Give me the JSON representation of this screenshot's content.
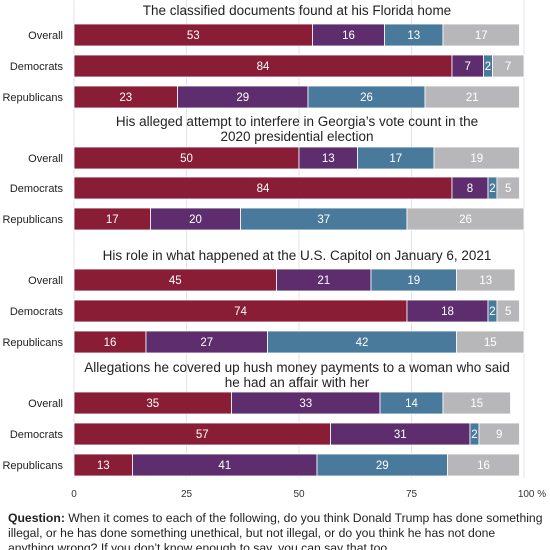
{
  "chart_data": {
    "type": "bar",
    "stacked": true,
    "orientation": "horizontal",
    "colors": [
      "#8a1d36",
      "#5e2d6d",
      "#4a7a9b",
      "#b7b7b9"
    ],
    "xlim": [
      0,
      100
    ],
    "x_ticks": [
      "0",
      "25",
      "50",
      "75",
      "100 %"
    ],
    "grid": true,
    "panels": [
      {
        "title": "The classified documents found at his Florida home",
        "rows": [
          {
            "label": "Overall",
            "values": [
              53,
              16,
              13,
              17
            ]
          },
          {
            "label": "Democrats",
            "values": [
              84,
              7,
              2,
              7
            ]
          },
          {
            "label": "Republicans",
            "values": [
              23,
              29,
              26,
              21
            ]
          }
        ]
      },
      {
        "title": "His alleged attempt to interfere in Georgia’s vote count in the 2020 presidential election",
        "rows": [
          {
            "label": "Overall",
            "values": [
              50,
              13,
              17,
              19
            ]
          },
          {
            "label": "Democrats",
            "values": [
              84,
              8,
              2,
              5
            ]
          },
          {
            "label": "Republicans",
            "values": [
              17,
              20,
              37,
              26
            ]
          }
        ]
      },
      {
        "title": "His role in what happened at the U.S. Capitol on January 6, 2021",
        "rows": [
          {
            "label": "Overall",
            "values": [
              45,
              21,
              19,
              13
            ]
          },
          {
            "label": "Democrats",
            "values": [
              74,
              18,
              2,
              5
            ]
          },
          {
            "label": "Republicans",
            "values": [
              16,
              27,
              42,
              15
            ]
          }
        ]
      },
      {
        "title": "Allegations he covered up hush money payments to a woman who said he had an affair with her",
        "rows": [
          {
            "label": "Overall",
            "values": [
              35,
              33,
              14,
              15
            ]
          },
          {
            "label": "Democrats",
            "values": [
              57,
              31,
              2,
              9
            ]
          },
          {
            "label": "Republicans",
            "values": [
              13,
              41,
              29,
              16
            ]
          }
        ]
      }
    ]
  },
  "footer": {
    "question_label": "Question:",
    "question_text": " When it comes to each of the following, do you think Donald Trump has done something illegal, or he has done something unethical, but not illegal, or do you think he has not done anything wrong? If you don’t know enough to say, you can say that too."
  }
}
